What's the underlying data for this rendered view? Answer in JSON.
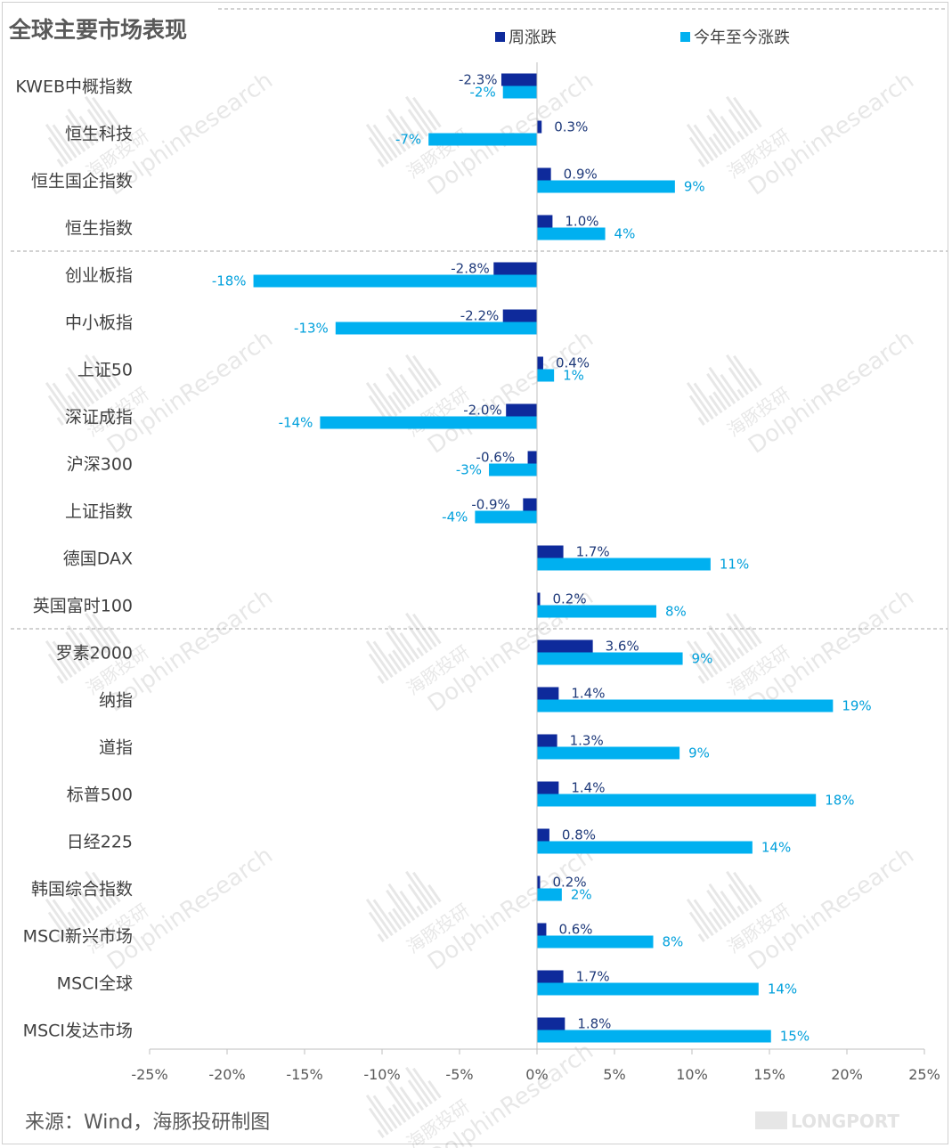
{
  "chart_data": {
    "type": "bar",
    "orientation": "horizontal",
    "title": "全球主要市场表现",
    "xlim": [
      -25,
      25
    ],
    "x_ticks": [
      "-25%",
      "-20%",
      "-15%",
      "-10%",
      "-5%",
      "0%",
      "5%",
      "10%",
      "15%",
      "20%",
      "25%"
    ],
    "x_tick_values": [
      -25,
      -20,
      -15,
      -10,
      -5,
      0,
      5,
      10,
      15,
      20,
      25
    ],
    "legend_position": "top-center",
    "categories": [
      "KWEB中概指数",
      "恒生科技",
      "恒生国企指数",
      "恒生指数",
      "创业板指",
      "中小板指",
      "上证50",
      "深证成指",
      "沪深300",
      "上证指数",
      "德国DAX",
      "英国富时100",
      "罗素2000",
      "纳指",
      "道指",
      "标普500",
      "日经225",
      "韩国综合指数",
      "MSCI新兴市场",
      "MSCI全球",
      "MSCI发达市场"
    ],
    "group_separators_after": [
      3,
      11
    ],
    "series": [
      {
        "name": "周涨跌",
        "color": "#0e2a9b",
        "values": [
          -2.3,
          0.3,
          0.9,
          1.0,
          -2.8,
          -2.2,
          0.4,
          -2.0,
          -0.6,
          -0.9,
          1.7,
          0.2,
          3.6,
          1.4,
          1.3,
          1.4,
          0.8,
          0.2,
          0.6,
          1.7,
          1.8
        ],
        "labels": [
          "-2.3%",
          "0.3%",
          "0.9%",
          "1.0%",
          "-2.8%",
          "-2.2%",
          "0.4%",
          "-2.0%",
          "-0.6%",
          "-0.9%",
          "1.7%",
          "0.2%",
          "3.6%",
          "1.4%",
          "1.3%",
          "1.4%",
          "0.8%",
          "0.2%",
          "0.6%",
          "1.7%",
          "1.8%"
        ]
      },
      {
        "name": "今年至今涨跌",
        "color": "#00b0f0",
        "values": [
          -2.2,
          -7.0,
          8.9,
          4.4,
          -18.3,
          -13.0,
          1.1,
          -14.0,
          -3.1,
          -4.0,
          11.2,
          7.7,
          9.4,
          19.1,
          9.2,
          18.0,
          13.9,
          1.6,
          7.5,
          14.3,
          15.1
        ],
        "labels": [
          "-2%",
          "-7%",
          "9%",
          "4%",
          "-18%",
          "-13%",
          "1%",
          "-14%",
          "-3%",
          "-4%",
          "11%",
          "8%",
          "9%",
          "19%",
          "9%",
          "18%",
          "14%",
          "2%",
          "8%",
          "14%",
          "15%"
        ]
      }
    ],
    "source_note": "来源：Wind，海豚投研制图"
  },
  "watermark": {
    "text_cn": "海豚投研",
    "text_en": "DolphinResearch",
    "corner_logo": "LONGPORT"
  }
}
